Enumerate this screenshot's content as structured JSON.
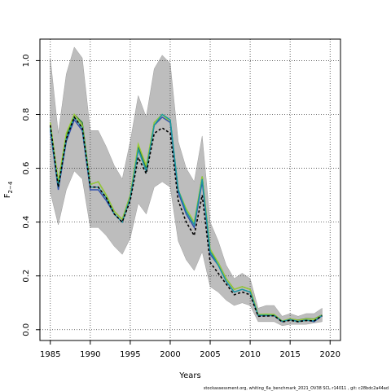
{
  "chart_data": {
    "type": "line",
    "xlabel": "Years",
    "ylabel_main": "F",
    "ylabel_sub": "2−4",
    "footnote": "stockassessment.org,  whiting_6a_benchmark_2021_OV38   SCL  r14011 ,  git:  c28bdc2a44ad",
    "xlim": [
      1983.7,
      2021.3
    ],
    "ylim": [
      -0.04,
      1.08
    ],
    "x_ticks": [
      "1985",
      "1990",
      "1995",
      "2000",
      "2005",
      "2010",
      "2015",
      "2020"
    ],
    "y_ticks": [
      "0.0",
      "0.2",
      "0.4",
      "0.6",
      "0.8",
      "1.0"
    ],
    "grid": true,
    "colors": {
      "band": "#bdbdbd",
      "band_edge": "#9e9e9e",
      "grid": "#444444"
    },
    "x": [
      1985,
      1986,
      1987,
      1988,
      1989,
      1990,
      1991,
      1992,
      1993,
      1994,
      1995,
      1996,
      1997,
      1998,
      1999,
      2000,
      2001,
      2002,
      2003,
      2004,
      2005,
      2006,
      2007,
      2008,
      2009,
      2010,
      2011,
      2012,
      2013,
      2014,
      2015,
      2016,
      2017,
      2018,
      2019
    ],
    "band_upper": [
      1.01,
      0.73,
      0.95,
      1.05,
      1.01,
      0.74,
      0.74,
      0.68,
      0.61,
      0.56,
      0.7,
      0.87,
      0.79,
      0.97,
      1.02,
      0.99,
      0.7,
      0.6,
      0.55,
      0.72,
      0.4,
      0.33,
      0.24,
      0.19,
      0.21,
      0.19,
      0.08,
      0.09,
      0.09,
      0.05,
      0.06,
      0.05,
      0.06,
      0.06,
      0.08
    ],
    "band_lower": [
      0.51,
      0.39,
      0.52,
      0.59,
      0.56,
      0.38,
      0.38,
      0.35,
      0.31,
      0.28,
      0.34,
      0.47,
      0.43,
      0.53,
      0.55,
      0.53,
      0.33,
      0.26,
      0.22,
      0.29,
      0.16,
      0.14,
      0.11,
      0.09,
      0.1,
      0.09,
      0.03,
      0.03,
      0.03,
      0.015,
      0.02,
      0.02,
      0.02,
      0.025,
      0.03
    ],
    "series": [
      {
        "color": "#2e7d32",
        "values": [
          0.76,
          0.54,
          0.72,
          0.8,
          0.77,
          0.54,
          0.55,
          0.5,
          0.44,
          0.41,
          0.5,
          0.68,
          0.6,
          0.77,
          0.8,
          0.78,
          0.52,
          0.44,
          0.39,
          0.57,
          0.29,
          0.25,
          0.19,
          0.15,
          0.16,
          0.15,
          0.056,
          0.057,
          0.056,
          0.032,
          0.04,
          0.036,
          0.041,
          0.04,
          0.055
        ]
      },
      {
        "color": "#9acd32",
        "values": [
          0.77,
          0.55,
          0.73,
          0.8,
          0.76,
          0.54,
          0.55,
          0.5,
          0.44,
          0.41,
          0.5,
          0.69,
          0.61,
          0.77,
          0.8,
          0.77,
          0.52,
          0.45,
          0.4,
          0.57,
          0.3,
          0.25,
          0.19,
          0.15,
          0.16,
          0.15,
          0.057,
          0.058,
          0.057,
          0.032,
          0.041,
          0.035,
          0.04,
          0.039,
          0.054
        ]
      },
      {
        "color": "#2f4fb0",
        "values": [
          0.74,
          0.52,
          0.7,
          0.78,
          0.74,
          0.52,
          0.52,
          0.48,
          0.43,
          0.4,
          0.49,
          0.67,
          0.59,
          0.76,
          0.79,
          0.77,
          0.51,
          0.43,
          0.38,
          0.55,
          0.28,
          0.24,
          0.18,
          0.14,
          0.15,
          0.14,
          0.052,
          0.052,
          0.052,
          0.03,
          0.038,
          0.031,
          0.036,
          0.03,
          0.052
        ]
      },
      {
        "color": "#1a9aa0",
        "values": [
          0.75,
          0.53,
          0.71,
          0.79,
          0.75,
          0.53,
          0.53,
          0.49,
          0.43,
          0.4,
          0.49,
          0.67,
          0.59,
          0.76,
          0.8,
          0.78,
          0.52,
          0.44,
          0.39,
          0.56,
          0.29,
          0.24,
          0.18,
          0.14,
          0.15,
          0.14,
          0.054,
          0.054,
          0.053,
          0.031,
          0.037,
          0.03,
          0.035,
          0.033,
          0.053
        ]
      },
      {
        "color": "#000000",
        "dashed": true,
        "values": [
          0.76,
          0.53,
          0.71,
          0.79,
          0.75,
          0.53,
          0.53,
          0.49,
          0.43,
          0.4,
          0.48,
          0.64,
          0.58,
          0.73,
          0.75,
          0.73,
          0.48,
          0.4,
          0.35,
          0.5,
          0.25,
          0.21,
          0.17,
          0.13,
          0.14,
          0.13,
          0.05,
          0.051,
          0.052,
          0.029,
          0.035,
          0.03,
          0.034,
          0.033,
          0.052
        ]
      }
    ]
  }
}
